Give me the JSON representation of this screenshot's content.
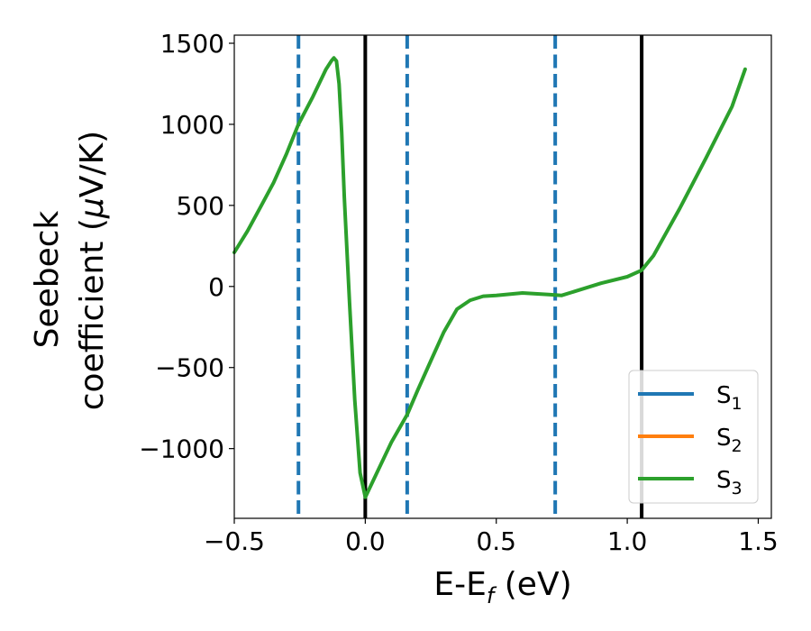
{
  "chart_data": {
    "type": "line",
    "xlabel": {
      "main": "E-E",
      "sub": "f",
      "tail": " (eV)"
    },
    "ylabel": {
      "line1": "Seebeck",
      "line2": "coefficient  (",
      "mu": "μ",
      "line2_tail": "V/K)"
    },
    "xlim": [
      -0.5,
      1.55
    ],
    "ylim": [
      -1430,
      1550
    ],
    "xticks": [
      {
        "value": -0.5,
        "label": "−0.5"
      },
      {
        "value": 0.0,
        "label": "0.0"
      },
      {
        "value": 0.5,
        "label": "0.5"
      },
      {
        "value": 1.0,
        "label": "1.0"
      },
      {
        "value": 1.5,
        "label": "1.5"
      }
    ],
    "yticks": [
      {
        "value": 1500,
        "label": "1500"
      },
      {
        "value": 1000,
        "label": "1000"
      },
      {
        "value": 500,
        "label": "500"
      },
      {
        "value": 0,
        "label": "0"
      },
      {
        "value": -500,
        "label": "−500"
      },
      {
        "value": -1000,
        "label": "−1000"
      }
    ],
    "vlines": [
      {
        "x": -0.255,
        "style": "dashed",
        "color": "#1f77b4"
      },
      {
        "x": 0.0,
        "style": "solid",
        "color": "#000000"
      },
      {
        "x": 0.16,
        "style": "dashed",
        "color": "#1f77b4"
      },
      {
        "x": 0.725,
        "style": "dashed",
        "color": "#1f77b4"
      },
      {
        "x": 1.055,
        "style": "solid",
        "color": "#000000"
      }
    ],
    "series": [
      {
        "name": "S",
        "sub": "1",
        "color": "#1f77b4",
        "x": [],
        "y": []
      },
      {
        "name": "S",
        "sub": "2",
        "color": "#ff7f0e",
        "x": [],
        "y": []
      },
      {
        "name": "S",
        "sub": "3",
        "color": "#2ca02c",
        "x": [
          -0.5,
          -0.45,
          -0.4,
          -0.35,
          -0.3,
          -0.255,
          -0.2,
          -0.15,
          -0.13,
          -0.12,
          -0.11,
          -0.1,
          -0.09,
          -0.08,
          -0.06,
          -0.04,
          -0.02,
          0.0,
          0.05,
          0.1,
          0.16,
          0.2,
          0.25,
          0.3,
          0.35,
          0.4,
          0.45,
          0.5,
          0.6,
          0.7,
          0.75,
          0.8,
          0.9,
          1.0,
          1.055,
          1.1,
          1.2,
          1.3,
          1.4,
          1.45
        ],
        "y": [
          210,
          340,
          490,
          640,
          820,
          1000,
          1170,
          1340,
          1390,
          1410,
          1390,
          1250,
          950,
          550,
          -100,
          -700,
          -1150,
          -1300,
          -1130,
          -960,
          -790,
          -640,
          -460,
          -280,
          -140,
          -85,
          -60,
          -55,
          -40,
          -50,
          -55,
          -30,
          20,
          60,
          100,
          190,
          480,
          790,
          1110,
          1340
        ]
      }
    ],
    "legend": {
      "position": "lower-right"
    }
  }
}
